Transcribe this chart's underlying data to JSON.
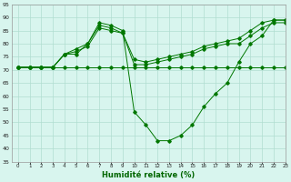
{
  "xlabel": "Humidité relative (%)",
  "xlim": [
    -0.5,
    23
  ],
  "ylim": [
    35,
    95
  ],
  "yticks": [
    35,
    40,
    45,
    50,
    55,
    60,
    65,
    70,
    75,
    80,
    85,
    90,
    95
  ],
  "xticks": [
    0,
    1,
    2,
    3,
    4,
    5,
    6,
    7,
    8,
    9,
    10,
    11,
    12,
    13,
    14,
    15,
    16,
    17,
    18,
    19,
    20,
    21,
    22,
    23
  ],
  "background_color": "#d8f5ee",
  "grid_color": "#b0ddd0",
  "line_color": "#007700",
  "line1_x": [
    0,
    1,
    2,
    3,
    4,
    5,
    6,
    7,
    8,
    9,
    10,
    11,
    12,
    13,
    14,
    15,
    16,
    17,
    18,
    19,
    20,
    21,
    22,
    23
  ],
  "line1_y": [
    71,
    71,
    71,
    71,
    71,
    71,
    71,
    71,
    71,
    71,
    71,
    71,
    71,
    71,
    71,
    71,
    71,
    71,
    71,
    71,
    71,
    71,
    71,
    71
  ],
  "line2_x": [
    0,
    1,
    2,
    3,
    4,
    5,
    6,
    7,
    8,
    9,
    10,
    11,
    12,
    13,
    14,
    15,
    16,
    17,
    18,
    19,
    20,
    21,
    22,
    23
  ],
  "line2_y": [
    71,
    71,
    71,
    71,
    76,
    76,
    80,
    87,
    86,
    84,
    74,
    73,
    74,
    75,
    76,
    77,
    79,
    80,
    81,
    82,
    85,
    88,
    89,
    89
  ],
  "line3_x": [
    0,
    1,
    2,
    3,
    4,
    5,
    6,
    7,
    8,
    9,
    10,
    11,
    12,
    13,
    14,
    15,
    16,
    17,
    18,
    19,
    20,
    21,
    22,
    23
  ],
  "line3_y": [
    71,
    71,
    71,
    71,
    76,
    77,
    79,
    86,
    85,
    84,
    72,
    72,
    73,
    74,
    75,
    76,
    78,
    79,
    80,
    80,
    83,
    86,
    88,
    88
  ],
  "line4_x": [
    0,
    1,
    2,
    3,
    4,
    5,
    6,
    7,
    8,
    9,
    10,
    11,
    12,
    13,
    14,
    15,
    16,
    17,
    18,
    19,
    20,
    21,
    22,
    23
  ],
  "line4_y": [
    71,
    71,
    71,
    71,
    76,
    78,
    80,
    88,
    87,
    85,
    54,
    49,
    43,
    43,
    45,
    49,
    56,
    61,
    65,
    73,
    80,
    83,
    89,
    89
  ]
}
